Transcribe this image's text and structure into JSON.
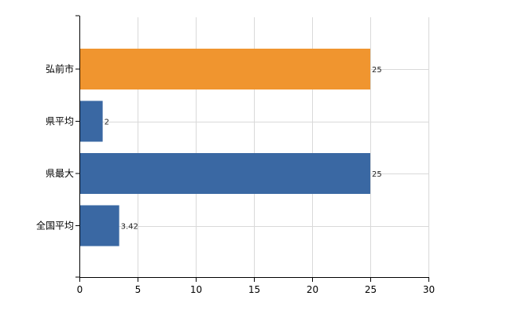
{
  "chart_data": {
    "type": "bar",
    "orientation": "horizontal",
    "categories": [
      "弘前市",
      "県平均",
      "県最大",
      "全国平均"
    ],
    "values": [
      25,
      2,
      25,
      3.42
    ],
    "data_labels": [
      "25",
      "2",
      "25",
      "3.42"
    ],
    "bar_colors": [
      "#f0952f",
      "#3a68a3",
      "#3a68a3",
      "#3a68a3"
    ],
    "xlim": [
      0,
      30
    ],
    "x_ticks": [
      0,
      5,
      10,
      15,
      20,
      25,
      30
    ],
    "x_tick_labels": [
      "0",
      "5",
      "10",
      "15",
      "20",
      "25",
      "30"
    ],
    "grid": true,
    "title": "",
    "xlabel": "",
    "ylabel": ""
  },
  "colors": {
    "highlight": "#f0952f",
    "default": "#3a68a3",
    "grid": "#d9d9d9",
    "axis": "#000000"
  }
}
